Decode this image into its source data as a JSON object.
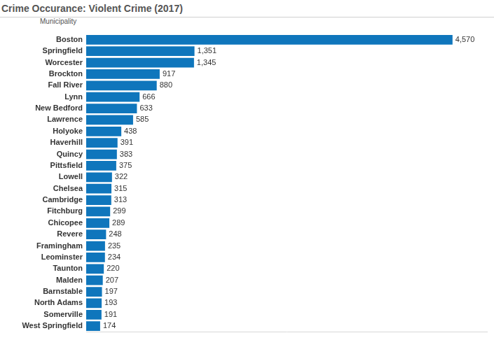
{
  "chart_data": {
    "type": "bar",
    "title": "Crime Occurance: Violent Crime (2017)",
    "ylabel": "Municipality",
    "orientation": "horizontal",
    "categories": [
      "Boston",
      "Springfield",
      "Worcester",
      "Brockton",
      "Fall River",
      "Lynn",
      "New Bedford",
      "Lawrence",
      "Holyoke",
      "Haverhill",
      "Quincy",
      "Pittsfield",
      "Lowell",
      "Chelsea",
      "Cambridge",
      "Fitchburg",
      "Chicopee",
      "Revere",
      "Framingham",
      "Leominster",
      "Taunton",
      "Malden",
      "Barnstable",
      "North Adams",
      "Somerville",
      "West Springfield"
    ],
    "values": [
      4570,
      1351,
      1345,
      917,
      880,
      666,
      633,
      585,
      438,
      391,
      383,
      375,
      322,
      315,
      313,
      299,
      289,
      248,
      235,
      234,
      220,
      207,
      197,
      193,
      191,
      174
    ],
    "value_labels": [
      "4,570",
      "1,351",
      "1,345",
      "917",
      "880",
      "666",
      "633",
      "585",
      "438",
      "391",
      "383",
      "375",
      "322",
      "315",
      "313",
      "299",
      "289",
      "248",
      "235",
      "234",
      "220",
      "207",
      "197",
      "193",
      "191",
      "174"
    ],
    "color": "#0F76BC",
    "xlim": [
      0,
      5000
    ],
    "grid": false,
    "data_labels": true,
    "tick_labels": "y"
  }
}
